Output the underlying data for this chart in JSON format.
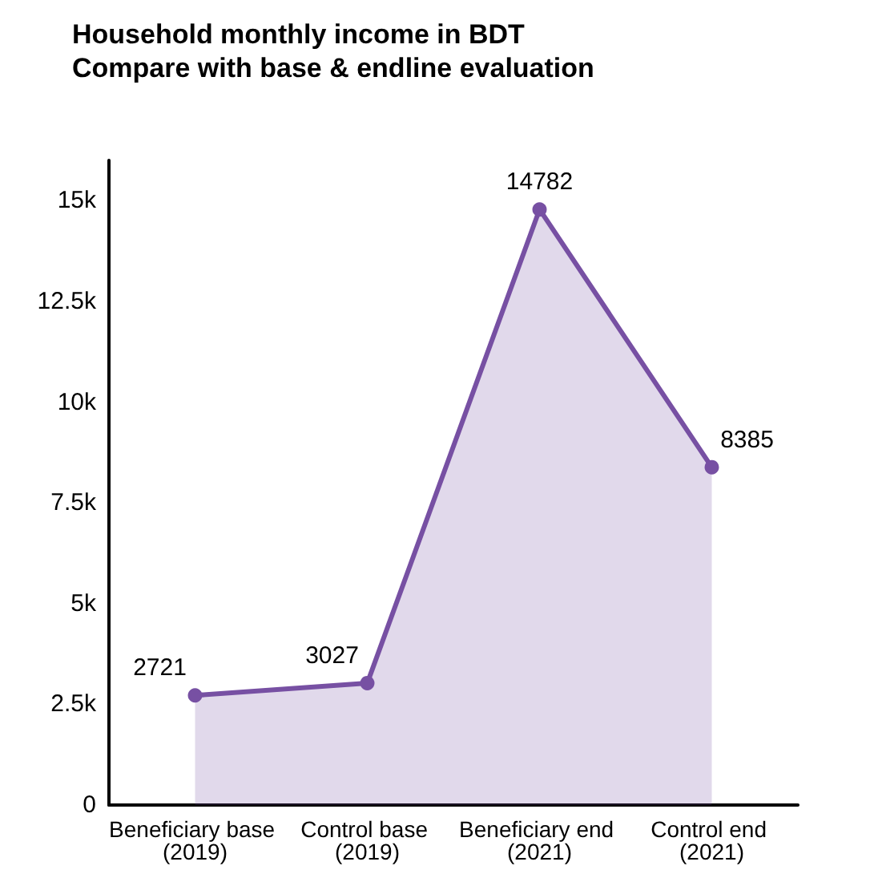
{
  "chart_data": {
    "type": "area",
    "title": "Household monthly income in BDT",
    "subtitle": "Compare with base & endline evaluation",
    "categories": [
      "Beneficiary base (2019)",
      "Control base (2019)",
      "Beneficiary end (2021)",
      "Control end (2021)"
    ],
    "series": [
      {
        "color": "#7750a3",
        "values": [
          2721,
          3027,
          14782,
          8385
        ]
      }
    ],
    "ylim": [
      0,
      16000
    ],
    "yticks": [
      0,
      {
        "value": 2500,
        "label": "2.5k"
      },
      {
        "value": 5000,
        "label": "5k"
      },
      {
        "value": 7500,
        "label": "7.5k"
      },
      {
        "value": 10000,
        "label": "10k"
      },
      {
        "value": 12500,
        "label": "12.5k"
      },
      {
        "value": 15000,
        "label": "15k"
      }
    ],
    "grid": false,
    "marker": "circle",
    "line_style": "solid",
    "data_labels": true
  }
}
